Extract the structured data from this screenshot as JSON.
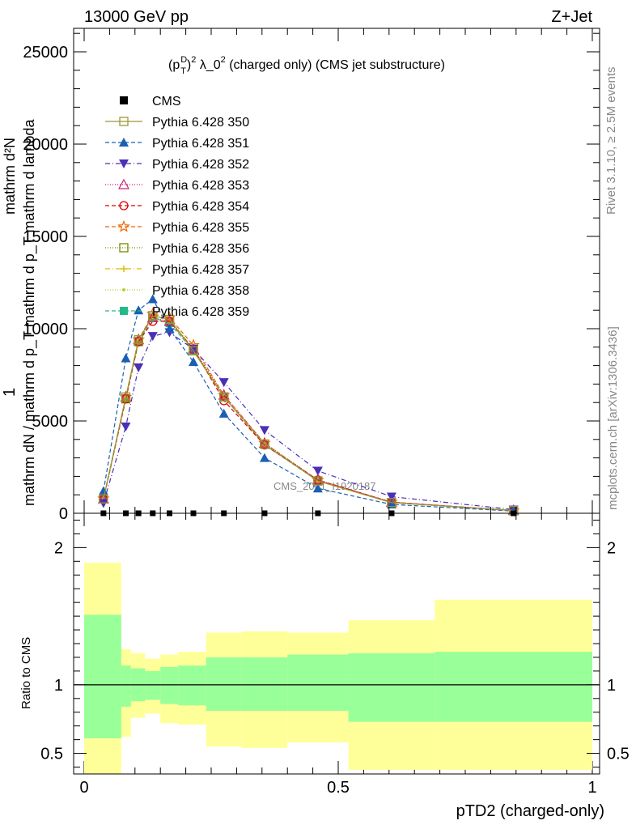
{
  "header": {
    "energy_label": "13000 GeV pp",
    "process_label": "Z+Jet"
  },
  "side_labels": {
    "rivet": "Rivet 3.1.10, ≥ 2.5M events",
    "mcplots": "mcplots.cern.ch [arXiv:1306.3436]"
  },
  "chart_data": [
    {
      "type": "line",
      "panel": "main",
      "title_parts": {
        "p": "(p",
        "sup": "D",
        "sub": "T",
        "rest": ")",
        "exp": "2",
        "lambda": " λ_0",
        "exp2": "2",
        "tail": " (charged only) (CMS jet substructure)"
      },
      "ylabel_top": "1",
      "ylabel_main": "mathrm dN / mathrm d p_T mathrm d p_T mathrm d lambda",
      "ylabel_num": "mathrm d²N",
      "watermark": "CMS_2021_I1920187",
      "xlim": [
        0,
        1
      ],
      "ylim": [
        0,
        25000
      ],
      "yticks": [
        {
          "v": 0,
          "label": "0"
        },
        {
          "v": 5000,
          "label": "5000"
        },
        {
          "v": 10000,
          "label": "10000"
        },
        {
          "v": 15000,
          "label": "15000"
        },
        {
          "v": 20000,
          "label": "20000"
        },
        {
          "v": 25000,
          "label": "25000"
        }
      ],
      "x": [
        0.038,
        0.082,
        0.107,
        0.135,
        0.168,
        0.215,
        0.275,
        0.355,
        0.46,
        0.605,
        0.845
      ],
      "cms": [
        0,
        0,
        0,
        0,
        0,
        0,
        0,
        0,
        0,
        0,
        0
      ],
      "series": [
        {
          "name": "CMS",
          "color": "#000000",
          "marker": "square-filled",
          "dash": "",
          "values": [
            0,
            0,
            0,
            0,
            0,
            0,
            0,
            0,
            0,
            0,
            0
          ]
        },
        {
          "name": "Pythia 6.428 350",
          "color": "#999933",
          "marker": "square-open",
          "dash": "",
          "values": [
            780,
            6300,
            9400,
            10700,
            10500,
            8800,
            6300,
            3750,
            1750,
            580,
            150
          ]
        },
        {
          "name": "Pythia 6.428 351",
          "color": "#1a5fb4",
          "marker": "triangle-up-filled",
          "dash": "5,3",
          "values": [
            1200,
            8400,
            11000,
            11600,
            10000,
            8200,
            5400,
            3000,
            1350,
            480,
            120
          ]
        },
        {
          "name": "Pythia 6.428 352",
          "color": "#4b2fb5",
          "marker": "triangle-down-filled",
          "dash": "6,3,1,3",
          "values": [
            550,
            4700,
            7900,
            9600,
            9800,
            8900,
            7100,
            4500,
            2300,
            900,
            200
          ]
        },
        {
          "name": "Pythia 6.428 353",
          "color": "#cc2277",
          "marker": "triangle-up-open",
          "dash": "1,2",
          "values": [
            780,
            6300,
            9400,
            10600,
            10400,
            8900,
            6400,
            3800,
            1800,
            600,
            150
          ]
        },
        {
          "name": "Pythia 6.428 354",
          "color": "#dd0000",
          "marker": "circle-open",
          "dash": "5,3",
          "values": [
            750,
            6200,
            9300,
            10400,
            10400,
            8900,
            6100,
            3700,
            1800,
            600,
            150
          ]
        },
        {
          "name": "Pythia 6.428 355",
          "color": "#ee6600",
          "marker": "star-open",
          "dash": "5,3",
          "values": [
            790,
            6300,
            9400,
            10800,
            10600,
            9100,
            6400,
            3800,
            1800,
            600,
            150
          ]
        },
        {
          "name": "Pythia 6.428 356",
          "color": "#778800",
          "marker": "square-open",
          "dash": "1,2",
          "values": [
            780,
            6200,
            9300,
            10700,
            10500,
            8900,
            6300,
            3750,
            1750,
            580,
            150
          ]
        },
        {
          "name": "Pythia 6.428 357",
          "color": "#ddbb00",
          "marker": "cross",
          "dash": "6,3,1,3",
          "values": [
            780,
            6300,
            9400,
            10700,
            10500,
            8900,
            6300,
            3750,
            1750,
            580,
            150
          ]
        },
        {
          "name": "Pythia 6.428 358",
          "color": "#bbcc33",
          "marker": "dot",
          "dash": "1,2",
          "values": [
            780,
            6300,
            9400,
            10700,
            10500,
            8900,
            6300,
            3750,
            1750,
            580,
            150
          ]
        },
        {
          "name": "Pythia 6.428 359",
          "color": "#22bb88",
          "marker": "square-filled",
          "dash": "5,3",
          "values": [
            770,
            6200,
            9300,
            10600,
            10300,
            8800,
            6300,
            3700,
            1750,
            580,
            150
          ]
        }
      ]
    },
    {
      "type": "area",
      "panel": "ratio",
      "ylabel": "Ratio to CMS",
      "xlabel": "pTD2 (charged-only)",
      "xlim": [
        0,
        1
      ],
      "ylim": [
        0.35,
        2.25
      ],
      "yticks": [
        {
          "v": 0.5,
          "label": "0.5"
        },
        {
          "v": 1,
          "label": "1"
        },
        {
          "v": 2,
          "label": "2"
        }
      ],
      "xticks": [
        {
          "v": 0,
          "label": "0"
        },
        {
          "v": 0.5,
          "label": "0.5"
        },
        {
          "v": 1,
          "label": "1"
        }
      ],
      "bins": [
        0,
        0.073,
        0.092,
        0.12,
        0.15,
        0.185,
        0.24,
        0.31,
        0.4,
        0.52,
        0.69,
        1.0
      ],
      "band_outer": {
        "color": "#ffff99",
        "low": [
          0.35,
          0.62,
          0.76,
          0.79,
          0.72,
          0.71,
          0.55,
          0.54,
          0.58,
          0.38,
          0.38
        ],
        "high": [
          1.89,
          1.26,
          1.23,
          1.19,
          1.22,
          1.24,
          1.38,
          1.39,
          1.38,
          1.47,
          1.62
        ]
      },
      "band_inner": {
        "color": "#99ff99",
        "low": [
          0.61,
          0.84,
          0.88,
          0.89,
          0.86,
          0.85,
          0.81,
          0.81,
          0.81,
          0.73,
          0.73
        ],
        "high": [
          1.51,
          1.14,
          1.12,
          1.1,
          1.13,
          1.14,
          1.2,
          1.2,
          1.22,
          1.23,
          1.24
        ]
      }
    }
  ]
}
